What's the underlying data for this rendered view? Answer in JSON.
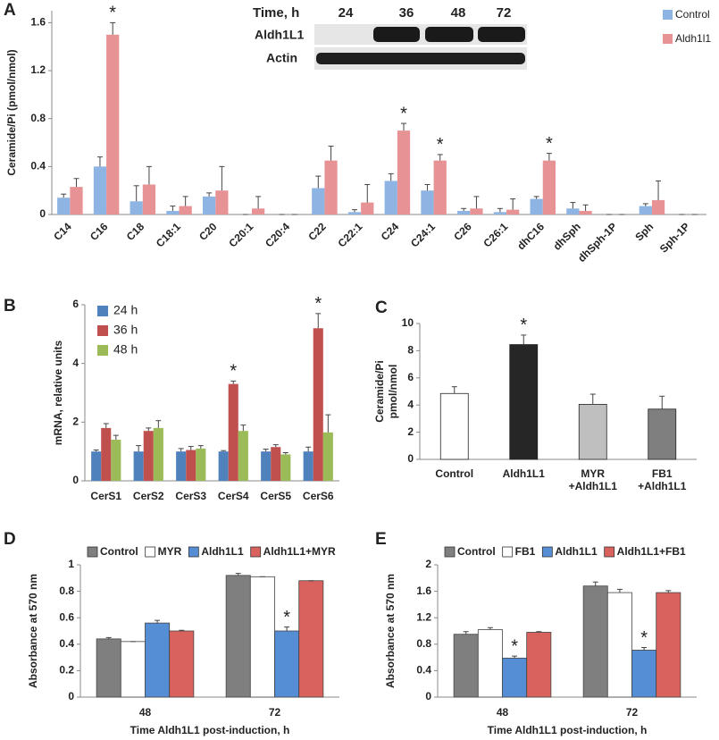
{
  "chart_data": [
    {
      "type": "bar",
      "panel": "A",
      "ylabel": "Ceramide/Pi (pmol/nmol)",
      "legend": "upper right",
      "categories": [
        "C14",
        "C16",
        "C18",
        "C18:1",
        "C20",
        "C20:1",
        "C20:4",
        "C22",
        "C22:1",
        "C24",
        "C24:1",
        "C26",
        "C26:1",
        "dhC16",
        "dhSph",
        "dhSph-1P",
        "Sph",
        "Sph-1P"
      ],
      "series": [
        {
          "name": "Control",
          "color": "#8eb4e3",
          "values": [
            0.14,
            0.4,
            0.11,
            0.03,
            0.15,
            0,
            0,
            0.22,
            0.02,
            0.28,
            0.2,
            0.03,
            0.02,
            0.13,
            0.05,
            0,
            0.07,
            0
          ],
          "errors": [
            0.03,
            0.08,
            0.13,
            0.04,
            0.03,
            0,
            0,
            0.1,
            0.02,
            0.06,
            0.05,
            0.02,
            0.03,
            0.02,
            0.05,
            0,
            0.02,
            0
          ],
          "significance": [
            null,
            null,
            null,
            null,
            null,
            null,
            null,
            null,
            null,
            null,
            null,
            null,
            null,
            null,
            null,
            null,
            null,
            null
          ]
        },
        {
          "name": "Aldh1l1",
          "color": "#e79395",
          "values": [
            0.23,
            1.5,
            0.25,
            0.07,
            0.2,
            0.05,
            0,
            0.45,
            0.1,
            0.7,
            0.45,
            0.05,
            0.04,
            0.45,
            0.03,
            0,
            0.12,
            0
          ],
          "errors": [
            0.07,
            0.1,
            0.15,
            0.08,
            0.2,
            0.1,
            0,
            0.12,
            0.15,
            0.06,
            0.05,
            0.1,
            0.09,
            0.06,
            0.05,
            0,
            0.16,
            0
          ],
          "significance": [
            null,
            "*",
            null,
            null,
            null,
            null,
            null,
            null,
            null,
            "*",
            "*",
            null,
            null,
            "*",
            null,
            null,
            null,
            null
          ]
        }
      ],
      "ylim": [
        0,
        1.7
      ],
      "yticks": [
        0,
        0.4,
        0.8,
        1.2,
        1.6
      ],
      "inset": {
        "title": "Time, h",
        "columns": [
          "24",
          "36",
          "48",
          "72"
        ],
        "rows": [
          "Aldh1L1",
          "Actin"
        ]
      }
    },
    {
      "type": "bar",
      "panel": "B",
      "ylabel": "mRNA, relative units",
      "legend": "upper left",
      "categories": [
        "CerS1",
        "CerS2",
        "CerS3",
        "CerS4",
        "CerS5",
        "CerS6"
      ],
      "series": [
        {
          "name": "24 h",
          "color": "#4f81bd",
          "values": [
            1.0,
            1.0,
            1.0,
            1.0,
            1.0,
            1.0
          ],
          "errors": [
            0.05,
            0.2,
            0.1,
            0.03,
            0.08,
            0.15
          ],
          "significance": [
            null,
            null,
            null,
            null,
            null,
            null
          ]
        },
        {
          "name": "36 h",
          "color": "#c0504d",
          "values": [
            1.8,
            1.7,
            1.05,
            3.3,
            1.15,
            5.2
          ],
          "errors": [
            0.15,
            0.1,
            0.12,
            0.1,
            0.08,
            0.5
          ],
          "significance": [
            null,
            null,
            null,
            "*",
            null,
            "*"
          ]
        },
        {
          "name": "48 h",
          "color": "#9bbb59",
          "values": [
            1.4,
            1.8,
            1.1,
            1.7,
            0.9,
            1.65
          ],
          "errors": [
            0.15,
            0.25,
            0.1,
            0.2,
            0.06,
            0.6
          ],
          "significance": [
            null,
            null,
            null,
            null,
            null,
            null
          ]
        }
      ],
      "ylim": [
        0,
        6
      ],
      "yticks": [
        0,
        2,
        4,
        6
      ]
    },
    {
      "type": "bar",
      "panel": "C",
      "ylabel": [
        "Ceramide/Pi",
        "pmol/nmol"
      ],
      "categories": [
        "Control",
        "Aldh1L1",
        "MYR\n+Aldh1L1",
        "FB1\n+Aldh1L1"
      ],
      "series": [
        {
          "colors": [
            "#ffffff",
            "#262626",
            "#bfbfbf",
            "#7f7f7f"
          ],
          "values": [
            4.85,
            8.45,
            4.05,
            3.7
          ],
          "errors": [
            0.5,
            0.7,
            0.75,
            0.95
          ],
          "significance": [
            null,
            "*",
            null,
            null
          ]
        }
      ],
      "ylim": [
        0,
        10
      ],
      "yticks": [
        0,
        2,
        4,
        6,
        8,
        10
      ]
    },
    {
      "type": "bar",
      "panel": "D",
      "ylabel": "Absorbance  at  570 nm",
      "xlabel": "Time Aldh1L1 post-induction, h",
      "legend": "top",
      "categories": [
        "48",
        "72"
      ],
      "series": [
        {
          "name": "Control",
          "color": "#7f7f7f",
          "values": [
            0.44,
            0.92
          ],
          "errors": [
            0.01,
            0.015
          ],
          "significance": [
            null,
            null
          ]
        },
        {
          "name": "MYR",
          "color": "#ffffff",
          "values": [
            0.42,
            0.91
          ],
          "errors": [
            0,
            0
          ],
          "significance": [
            null,
            null
          ]
        },
        {
          "name": "Aldh1L1",
          "color": "#558ed5",
          "values": [
            0.56,
            0.5
          ],
          "errors": [
            0.02,
            0.03
          ],
          "significance": [
            null,
            "*"
          ]
        },
        {
          "name": "Aldh1L1+MYR",
          "color": "#d9625e",
          "values": [
            0.5,
            0.88
          ],
          "errors": [
            0.005,
            0
          ],
          "significance": [
            null,
            null
          ]
        }
      ],
      "ylim": [
        0,
        1
      ],
      "yticks": [
        0,
        0.2,
        0.4,
        0.6,
        0.8,
        1
      ]
    },
    {
      "type": "bar",
      "panel": "E",
      "ylabel": "Absorbance  at  570 nm",
      "xlabel": "Time Aldh1L1 post-induction, h",
      "legend": "top",
      "categories": [
        "48",
        "72"
      ],
      "series": [
        {
          "name": "Control",
          "color": "#7f7f7f",
          "values": [
            0.95,
            1.68
          ],
          "errors": [
            0.04,
            0.06
          ],
          "significance": [
            null,
            null
          ]
        },
        {
          "name": "FB1",
          "color": "#ffffff",
          "values": [
            1.02,
            1.58
          ],
          "errors": [
            0.03,
            0.05
          ],
          "significance": [
            null,
            null
          ]
        },
        {
          "name": "Aldh1L1",
          "color": "#558ed5",
          "values": [
            0.59,
            0.71
          ],
          "errors": [
            0.03,
            0.04
          ],
          "significance": [
            "*",
            "*"
          ]
        },
        {
          "name": "Aldh1L1+FB1",
          "color": "#d9625e",
          "values": [
            0.98,
            1.58
          ],
          "errors": [
            0.01,
            0.03
          ],
          "significance": [
            null,
            null
          ]
        }
      ],
      "ylim": [
        0,
        2
      ],
      "yticks": [
        0,
        0.4,
        0.8,
        1.2,
        1.6,
        2
      ]
    }
  ]
}
